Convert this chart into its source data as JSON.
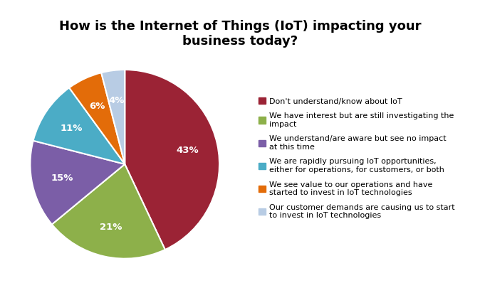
{
  "title": "How is the Internet of Things (IoT) impacting your\nbusiness today?",
  "slices": [
    43,
    21,
    15,
    11,
    6,
    4
  ],
  "labels": [
    "43%",
    "21%",
    "15%",
    "11%",
    "6%",
    "4%"
  ],
  "colors": [
    "#9B2335",
    "#8DB04A",
    "#7B5EA7",
    "#4BACC6",
    "#E36C09",
    "#B8CCE4"
  ],
  "legend_labels": [
    "Don't understand/know about IoT",
    "We have interest but are still investigating the\nimpact",
    "We understand/are aware but see no impact\nat this time",
    "We are rapidly pursuing IoT opportunities,\neither for operations, for customers, or both",
    "We see value to our operations and have\nstarted to invest in IoT technologies",
    "Our customer demands are causing us to start\nto invest in IoT technologies"
  ],
  "title_fontsize": 13,
  "legend_fontsize": 8.0,
  "label_fontsize": 9.5,
  "label_color": "white"
}
